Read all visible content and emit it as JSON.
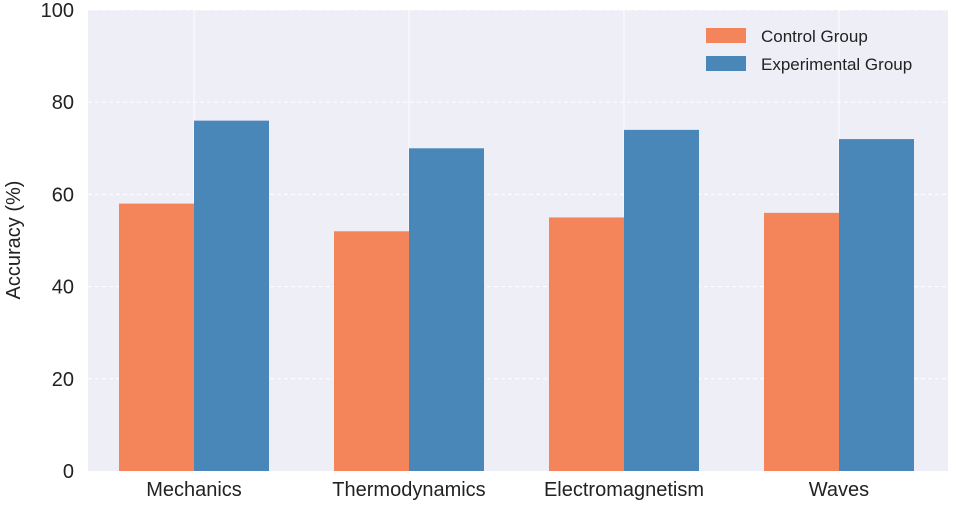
{
  "chart_data": {
    "type": "bar",
    "title": "",
    "xlabel": "",
    "ylabel": "Accuracy (%)",
    "categories": [
      "Mechanics",
      "Thermodynamics",
      "Electromagnetism",
      "Waves"
    ],
    "series": [
      {
        "name": "Control Group",
        "color": "#F4845A",
        "values": [
          58,
          52,
          55,
          56
        ]
      },
      {
        "name": "Experimental Group",
        "color": "#4A87B9",
        "values": [
          76,
          70,
          74,
          72
        ]
      }
    ],
    "ylim": [
      0,
      100
    ],
    "yticks": [
      0,
      20,
      40,
      60,
      80,
      100
    ],
    "ytick_labels": [
      "0",
      "20",
      "40",
      "60",
      "80",
      "100"
    ],
    "grid": true,
    "legend_position": "top-right",
    "background_color": "#EEEEF6"
  }
}
